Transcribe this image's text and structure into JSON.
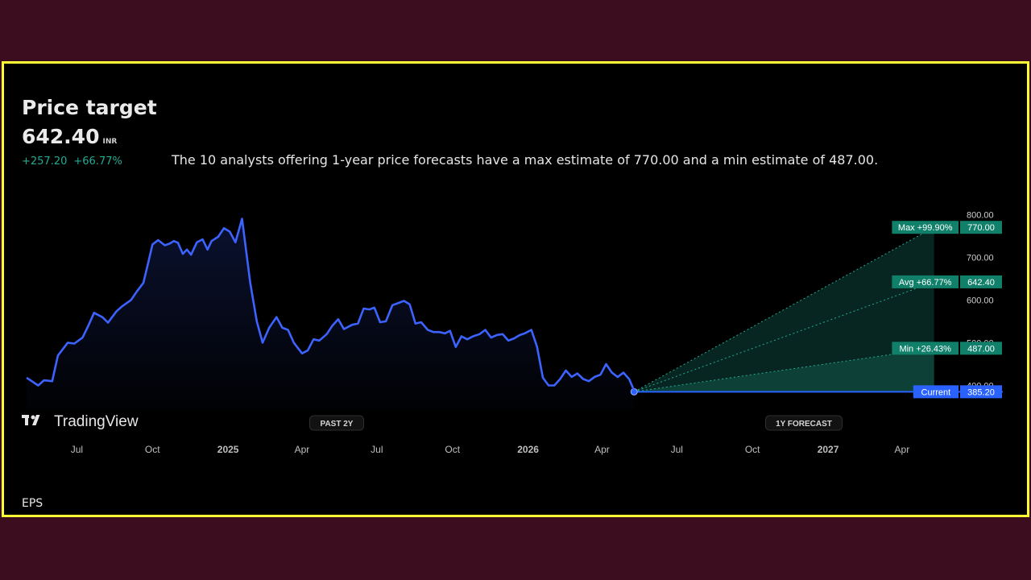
{
  "header": {
    "title": "Price target",
    "price": "642.40",
    "currency": "INR",
    "change_abs": "+257.20",
    "change_pct": "+66.77%",
    "summary": "The 10 analysts offering 1-year price forecasts have a max estimate of 770.00 and a min estimate of 487.00."
  },
  "footer": {
    "tab_label": "EPS"
  },
  "logo": {
    "text": "TradingView"
  },
  "colors": {
    "line": "#3d63ff",
    "forecast_fill": "#22ab94",
    "label_green": "#10806a",
    "current_blue": "#2962ff",
    "positive": "#22ab94"
  },
  "chart_data": {
    "type": "line",
    "y_unit": "INR",
    "ylim": [
      350,
      810
    ],
    "y_ticks": [
      400,
      500,
      600,
      700,
      800
    ],
    "y_tick_labels": [
      "400.00",
      "500.00",
      "600.00",
      "700.00",
      "800.00"
    ],
    "x_range": [
      "2024-04-25",
      "2027-05-25"
    ],
    "x_ticks": [
      {
        "date": "2024-07-01",
        "label": "Jul",
        "bold": false
      },
      {
        "date": "2024-10-01",
        "label": "Oct",
        "bold": false
      },
      {
        "date": "2025-01-01",
        "label": "2025",
        "bold": true
      },
      {
        "date": "2025-04-01",
        "label": "Apr",
        "bold": false
      },
      {
        "date": "2025-07-01",
        "label": "Jul",
        "bold": false
      },
      {
        "date": "2025-10-01",
        "label": "Oct",
        "bold": false
      },
      {
        "date": "2026-01-01",
        "label": "2026",
        "bold": true
      },
      {
        "date": "2026-04-01",
        "label": "Apr",
        "bold": false
      },
      {
        "date": "2026-07-01",
        "label": "Jul",
        "bold": false
      },
      {
        "date": "2026-10-01",
        "label": "Oct",
        "bold": false
      },
      {
        "date": "2027-01-01",
        "label": "2027",
        "bold": true
      },
      {
        "date": "2027-04-01",
        "label": "Apr",
        "bold": false
      }
    ],
    "period_labels": {
      "past": "PAST 2Y",
      "forecast": "1Y FORECAST"
    },
    "history": {
      "dates": [
        "2024-05-01",
        "2024-05-15",
        "2024-05-22",
        "2024-06-01",
        "2024-06-08",
        "2024-06-20",
        "2024-06-28",
        "2024-07-08",
        "2024-07-15",
        "2024-07-22",
        "2024-08-01",
        "2024-08-08",
        "2024-08-18",
        "2024-08-25",
        "2024-09-05",
        "2024-09-12",
        "2024-09-20",
        "2024-09-25",
        "2024-10-01",
        "2024-10-08",
        "2024-10-16",
        "2024-10-22",
        "2024-10-27",
        "2024-11-01",
        "2024-11-07",
        "2024-11-12",
        "2024-11-17",
        "2024-11-24",
        "2024-12-01",
        "2024-12-07",
        "2024-12-12",
        "2024-12-20",
        "2024-12-27",
        "2025-01-03",
        "2025-01-10",
        "2025-01-18",
        "2025-01-28",
        "2025-02-05",
        "2025-02-12",
        "2025-02-20",
        "2025-03-01",
        "2025-03-08",
        "2025-03-15",
        "2025-03-22",
        "2025-04-01",
        "2025-04-08",
        "2025-04-15",
        "2025-04-22",
        "2025-05-01",
        "2025-05-08",
        "2025-05-15",
        "2025-05-22",
        "2025-06-01",
        "2025-06-08",
        "2025-06-15",
        "2025-06-22",
        "2025-06-28",
        "2025-07-05",
        "2025-07-12",
        "2025-07-20",
        "2025-07-26",
        "2025-08-03",
        "2025-08-10",
        "2025-08-17",
        "2025-08-24",
        "2025-09-01",
        "2025-09-08",
        "2025-09-15",
        "2025-09-22",
        "2025-09-28",
        "2025-10-05",
        "2025-10-12",
        "2025-10-19",
        "2025-10-26",
        "2025-11-03",
        "2025-11-10",
        "2025-11-17",
        "2025-11-24",
        "2025-12-01",
        "2025-12-08",
        "2025-12-15",
        "2025-12-22",
        "2025-12-28",
        "2026-01-05",
        "2026-01-12",
        "2026-01-19",
        "2026-01-26",
        "2026-02-02",
        "2026-02-09",
        "2026-02-16",
        "2026-02-23",
        "2026-03-02",
        "2026-03-09",
        "2026-03-16",
        "2026-03-23",
        "2026-03-30",
        "2026-04-06",
        "2026-04-13",
        "2026-04-20",
        "2026-04-27",
        "2026-05-04",
        "2026-05-10"
      ],
      "values": [
        418,
        400,
        412,
        410,
        470,
        500,
        498,
        512,
        540,
        570,
        560,
        547,
        573,
        585,
        600,
        620,
        640,
        680,
        730,
        740,
        728,
        732,
        738,
        734,
        708,
        718,
        706,
        735,
        742,
        718,
        738,
        748,
        768,
        760,
        735,
        790,
        640,
        550,
        500,
        535,
        560,
        535,
        530,
        500,
        475,
        482,
        508,
        505,
        520,
        540,
        555,
        532,
        542,
        545,
        580,
        578,
        582,
        548,
        550,
        588,
        592,
        598,
        590,
        545,
        548,
        530,
        525,
        525,
        522,
        528,
        490,
        515,
        508,
        515,
        520,
        530,
        512,
        518,
        520,
        505,
        510,
        518,
        522,
        530,
        490,
        418,
        400,
        400,
        415,
        435,
        420,
        428,
        415,
        410,
        420,
        425,
        450,
        430,
        420,
        430,
        415,
        388
      ]
    },
    "forecast": {
      "start_date": "2026-05-10",
      "end_date": "2027-05-10",
      "current": 385.2,
      "max": 770.0,
      "avg": 642.4,
      "min": 487.0,
      "labels": {
        "max": "Max +99.90%",
        "avg": "Avg +66.77%",
        "min": "Min +26.43%",
        "current": "Current"
      },
      "value_labels": {
        "max": "770.00",
        "avg": "642.40",
        "min": "487.00",
        "current": "385.20"
      }
    }
  }
}
